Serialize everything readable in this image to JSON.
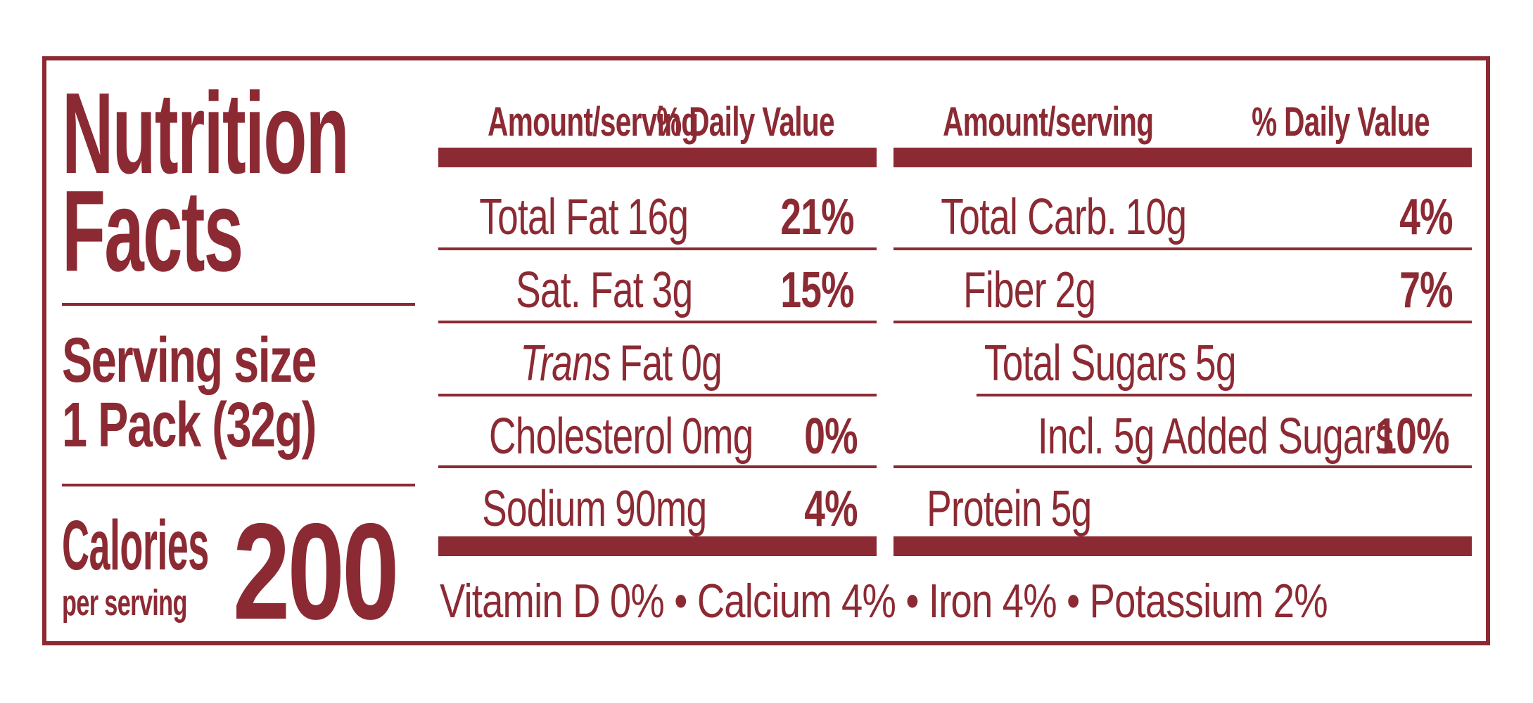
{
  "colors": {
    "maroon": "#8c2a33",
    "background": "#ffffff"
  },
  "title": {
    "line1": "Nutrition",
    "line2": "Facts"
  },
  "serving": {
    "label": "Serving size",
    "value": "1 Pack (32g)"
  },
  "calories": {
    "label": "Calories",
    "sublabel": "per serving",
    "value": "200"
  },
  "columns": [
    {
      "header": {
        "amount": "Amount/serving",
        "daily_value": "% Daily Value"
      },
      "rows": [
        {
          "label": "Total Fat",
          "value": "16g",
          "daily_value": "21%"
        },
        {
          "label": "Sat. Fat",
          "value": "3g",
          "daily_value": "15%"
        },
        {
          "label_italic": "Trans",
          "label": "Fat",
          "value": "0g",
          "daily_value": ""
        },
        {
          "label": "Cholesterol",
          "value": "0mg",
          "daily_value": "0%"
        },
        {
          "label": "Sodium",
          "value": "90mg",
          "daily_value": "4%"
        }
      ]
    },
    {
      "header": {
        "amount": "Amount/serving",
        "daily_value": "% Daily Value"
      },
      "rows": [
        {
          "label": "Total Carb.",
          "value": "10g",
          "daily_value": "4%"
        },
        {
          "label": "Fiber",
          "value": "2g",
          "daily_value": "7%"
        },
        {
          "label": "Total Sugars",
          "value": "5g",
          "daily_value": ""
        },
        {
          "label": "Incl. 5g Added Sugars",
          "value": "",
          "daily_value": "10%"
        },
        {
          "label": "Protein",
          "value": "5g",
          "daily_value": ""
        }
      ]
    }
  ],
  "footer": {
    "micronutrients": "Vitamin D 0% • Calcium 4% • Iron 4% • Potassium 2%"
  }
}
